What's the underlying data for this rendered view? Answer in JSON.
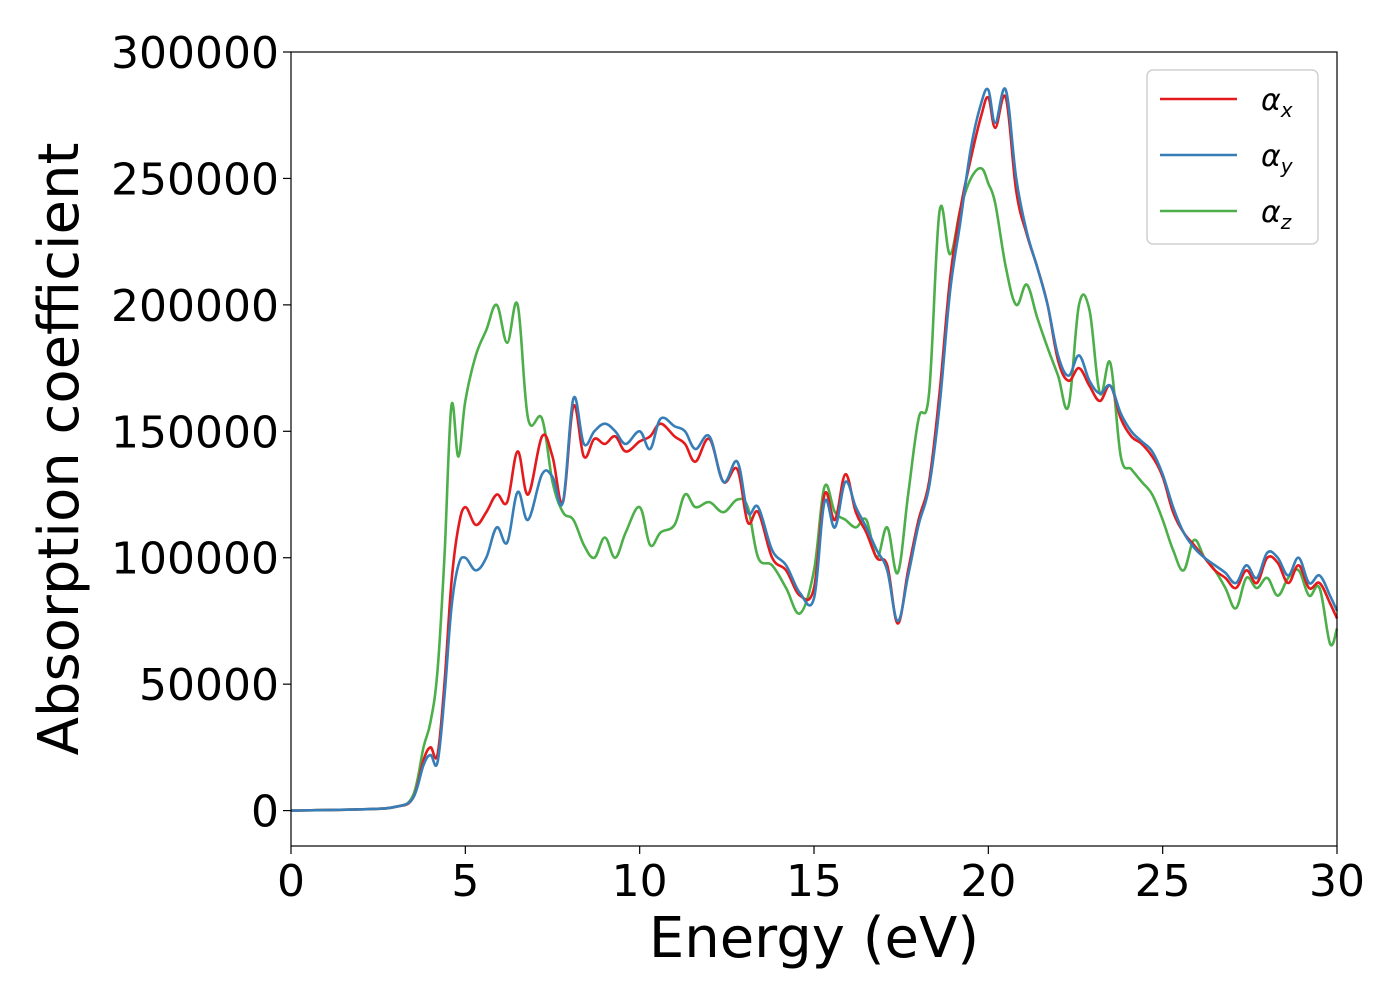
{
  "chart_data": {
    "type": "line",
    "title": "",
    "xlabel": "Energy (eV)",
    "ylabel": "Absorption coefficient",
    "xlim": [
      0,
      30
    ],
    "ylim": [
      -14000,
      300000
    ],
    "x_ticks": [
      0,
      5,
      10,
      15,
      20,
      25,
      30
    ],
    "x_tick_labels": [
      "0",
      "5",
      "10",
      "15",
      "20",
      "25",
      "30"
    ],
    "y_ticks": [
      0,
      50000,
      100000,
      150000,
      200000,
      250000,
      300000
    ],
    "y_tick_labels": [
      "0",
      "50000",
      "100000",
      "150000",
      "200000",
      "250000",
      "300000"
    ],
    "grid": false,
    "legend_position": "top-right",
    "series": [
      {
        "name": "α_x",
        "legend_base": "α",
        "legend_sub": "x",
        "color": "#e41a1c",
        "x": [
          0,
          2,
          3,
          3.5,
          3.8,
          4.0,
          4.2,
          4.4,
          4.6,
          4.8,
          5.0,
          5.3,
          5.6,
          5.9,
          6.2,
          6.5,
          6.8,
          7.2,
          7.5,
          7.8,
          8.1,
          8.4,
          8.7,
          9.0,
          9.3,
          9.6,
          10.0,
          10.3,
          10.6,
          11.0,
          11.3,
          11.6,
          12.0,
          12.4,
          12.8,
          13.1,
          13.4,
          13.8,
          14.2,
          14.6,
          15.0,
          15.3,
          15.6,
          15.9,
          16.2,
          16.5,
          16.8,
          17.1,
          17.4,
          17.7,
          18.0,
          18.3,
          18.6,
          18.9,
          19.2,
          19.5,
          19.8,
          20.0,
          20.2,
          20.5,
          20.8,
          21.1,
          21.4,
          21.7,
          22.0,
          22.3,
          22.6,
          22.9,
          23.2,
          23.5,
          23.8,
          24.1,
          24.4,
          24.7,
          25.0,
          25.3,
          25.6,
          25.9,
          26.2,
          26.5,
          26.8,
          27.1,
          27.4,
          27.7,
          28.0,
          28.3,
          28.6,
          28.9,
          29.2,
          29.5,
          29.8,
          30.0
        ],
        "y": [
          0,
          500,
          1500,
          5000,
          20000,
          25000,
          22000,
          50000,
          90000,
          112000,
          120000,
          113000,
          118000,
          125000,
          122000,
          142000,
          125000,
          148000,
          140000,
          122000,
          160000,
          140000,
          147000,
          145000,
          148000,
          142000,
          146000,
          148000,
          153000,
          148000,
          145000,
          138000,
          147000,
          130000,
          135000,
          114000,
          118000,
          100000,
          95000,
          85000,
          88000,
          125000,
          115000,
          133000,
          118000,
          110000,
          100000,
          97000,
          74000,
          95000,
          115000,
          130000,
          165000,
          210000,
          238000,
          258000,
          275000,
          282000,
          270000,
          282000,
          245000,
          228000,
          215000,
          200000,
          178000,
          170000,
          175000,
          168000,
          162000,
          168000,
          155000,
          148000,
          145000,
          140000,
          132000,
          118000,
          110000,
          105000,
          100000,
          95000,
          92000,
          88000,
          95000,
          90000,
          100000,
          98000,
          90000,
          97000,
          88000,
          90000,
          82000,
          76000
        ]
      },
      {
        "name": "α_y",
        "legend_base": "α",
        "legend_sub": "y",
        "color": "#377eb8",
        "x": [
          0,
          2,
          3,
          3.5,
          3.8,
          4.0,
          4.2,
          4.4,
          4.6,
          4.8,
          5.0,
          5.3,
          5.6,
          5.9,
          6.2,
          6.5,
          6.8,
          7.2,
          7.5,
          7.8,
          8.1,
          8.4,
          8.7,
          9.0,
          9.3,
          9.6,
          10.0,
          10.3,
          10.6,
          11.0,
          11.3,
          11.6,
          12.0,
          12.4,
          12.8,
          13.1,
          13.4,
          13.8,
          14.2,
          14.6,
          15.0,
          15.3,
          15.6,
          15.9,
          16.2,
          16.5,
          16.8,
          17.1,
          17.4,
          17.7,
          18.0,
          18.3,
          18.6,
          18.9,
          19.2,
          19.5,
          19.8,
          20.0,
          20.2,
          20.5,
          20.8,
          21.1,
          21.4,
          21.7,
          22.0,
          22.3,
          22.6,
          22.9,
          23.2,
          23.5,
          23.8,
          24.1,
          24.4,
          24.7,
          25.0,
          25.3,
          25.6,
          25.9,
          26.2,
          26.5,
          26.8,
          27.1,
          27.4,
          27.7,
          28.0,
          28.3,
          28.6,
          28.9,
          29.2,
          29.5,
          29.8,
          30.0
        ],
        "y": [
          0,
          500,
          1500,
          5000,
          18000,
          22000,
          19000,
          45000,
          80000,
          97000,
          100000,
          95000,
          100000,
          112000,
          106000,
          126000,
          115000,
          133000,
          132000,
          122000,
          163000,
          145000,
          150000,
          153000,
          150000,
          145000,
          150000,
          143000,
          155000,
          152000,
          150000,
          143000,
          148000,
          130000,
          138000,
          118000,
          120000,
          103000,
          97000,
          86000,
          84000,
          122000,
          112000,
          130000,
          120000,
          112000,
          103000,
          95000,
          75000,
          93000,
          113000,
          128000,
          160000,
          205000,
          233000,
          262000,
          280000,
          285000,
          272000,
          285000,
          250000,
          229000,
          215000,
          200000,
          180000,
          172000,
          180000,
          170000,
          165000,
          168000,
          157000,
          150000,
          146000,
          142000,
          133000,
          120000,
          110000,
          104000,
          100000,
          97000,
          94000,
          90000,
          97000,
          92000,
          102000,
          100000,
          93000,
          100000,
          90000,
          93000,
          85000,
          79000
        ]
      },
      {
        "name": "α_z",
        "legend_base": "α",
        "legend_sub": "z",
        "color": "#4daf4a",
        "x": [
          0,
          2,
          3,
          3.5,
          3.8,
          4.0,
          4.2,
          4.4,
          4.6,
          4.8,
          5.0,
          5.3,
          5.6,
          5.9,
          6.2,
          6.5,
          6.8,
          7.2,
          7.5,
          7.8,
          8.1,
          8.4,
          8.7,
          9.0,
          9.3,
          9.6,
          10.0,
          10.3,
          10.6,
          11.0,
          11.3,
          11.6,
          12.0,
          12.4,
          12.8,
          13.1,
          13.4,
          13.8,
          14.2,
          14.6,
          15.0,
          15.3,
          15.6,
          15.9,
          16.2,
          16.5,
          16.8,
          17.1,
          17.4,
          17.7,
          18.0,
          18.3,
          18.6,
          18.9,
          19.2,
          19.5,
          19.8,
          20.0,
          20.2,
          20.5,
          20.8,
          21.1,
          21.4,
          21.7,
          22.0,
          22.3,
          22.6,
          22.9,
          23.2,
          23.5,
          23.8,
          24.1,
          24.4,
          24.7,
          25.0,
          25.3,
          25.6,
          25.9,
          26.2,
          26.5,
          26.8,
          27.1,
          27.4,
          27.7,
          28.0,
          28.3,
          28.6,
          28.9,
          29.2,
          29.5,
          29.8,
          30.0
        ],
        "y": [
          0,
          500,
          1500,
          6000,
          25000,
          35000,
          55000,
          100000,
          160000,
          140000,
          162000,
          180000,
          190000,
          200000,
          185000,
          200000,
          155000,
          155000,
          130000,
          118000,
          115000,
          105000,
          100000,
          108000,
          100000,
          110000,
          120000,
          105000,
          110000,
          113000,
          125000,
          120000,
          122000,
          118000,
          123000,
          120000,
          100000,
          97000,
          88000,
          78000,
          95000,
          128000,
          118000,
          115000,
          112000,
          115000,
          100000,
          112000,
          94000,
          125000,
          155000,
          165000,
          237000,
          220000,
          238000,
          250000,
          254000,
          248000,
          240000,
          215000,
          200000,
          208000,
          195000,
          183000,
          172000,
          160000,
          200000,
          198000,
          165000,
          177000,
          140000,
          135000,
          130000,
          125000,
          115000,
          103000,
          95000,
          107000,
          100000,
          95000,
          88000,
          80000,
          92000,
          88000,
          92000,
          85000,
          92000,
          95000,
          85000,
          88000,
          66000,
          72000
        ]
      }
    ]
  }
}
